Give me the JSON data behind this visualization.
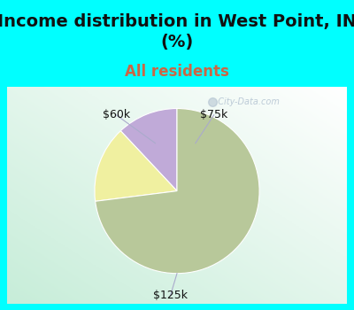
{
  "title": "Income distribution in West Point, IN\n(%)",
  "subtitle": "All residents",
  "title_fontsize": 14,
  "subtitle_fontsize": 12,
  "title_color": "#111111",
  "subtitle_color": "#cc6644",
  "top_bg_color": "#00ffff",
  "slices": [
    {
      "label": "$75k",
      "value": 12,
      "color": "#c0aad8"
    },
    {
      "label": "$60k",
      "value": 15,
      "color": "#f0f0a0"
    },
    {
      "label": "$125k",
      "value": 73,
      "color": "#b8c89a"
    }
  ],
  "label_fontsize": 9,
  "label_color": "#111111",
  "start_angle": 90,
  "watermark": "  City-Data.com",
  "border_color": "#00ffff",
  "border_width": 8
}
